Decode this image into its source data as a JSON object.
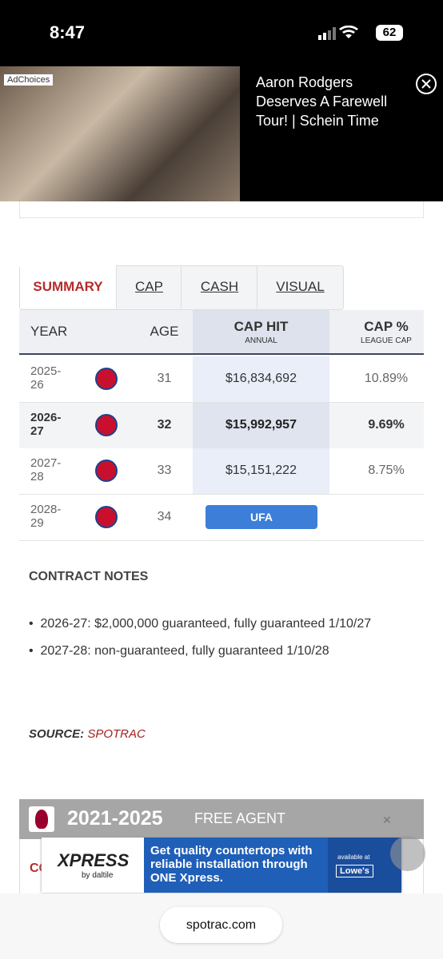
{
  "status_bar": {
    "time": "8:47",
    "battery": "62"
  },
  "video_ad": {
    "ad_choices": "AdChoices",
    "title": "Aaron Rodgers Deserves A Farewell Tour! | Schein Time"
  },
  "tabs": [
    "SUMMARY",
    "CAP",
    "CASH",
    "VISUAL"
  ],
  "table": {
    "headers": {
      "year": "YEAR",
      "age": "AGE",
      "cap_hit": "CAP HIT",
      "cap_hit_sub": "ANNUAL",
      "cap_pct": "CAP %",
      "cap_pct_sub": "LEAGUE CAP"
    },
    "rows": [
      {
        "year": "2025-26",
        "age": "31",
        "cap_hit": "$16,834,692",
        "cap_pct": "10.89%"
      },
      {
        "year": "2026-27",
        "age": "32",
        "cap_hit": "$15,992,957",
        "cap_pct": "9.69%"
      },
      {
        "year": "2027-28",
        "age": "33",
        "cap_hit": "$15,151,222",
        "cap_pct": "8.75%"
      },
      {
        "year": "2028-29",
        "age": "34",
        "status": "UFA"
      }
    ]
  },
  "contract_notes": {
    "heading": "CONTRACT NOTES",
    "items": [
      "2026-27: $2,000,000 guaranteed, fully guaranteed 1/10/27",
      "2027-28: non-guaranteed, fully guaranteed 1/10/28"
    ]
  },
  "source": {
    "label": "SOURCE:",
    "name": "SPOTRAC"
  },
  "previous_contract": {
    "years": "2021-2025",
    "type": "FREE AGENT",
    "partial_heading": "CO"
  },
  "banner_ad": {
    "brand": "XPRESS",
    "by": "by daltile",
    "text": "Get quality countertops with reliable installation through ONE Xpress.",
    "available": "available at",
    "retailer": "Lowe's"
  },
  "url": "spotrac.com"
}
